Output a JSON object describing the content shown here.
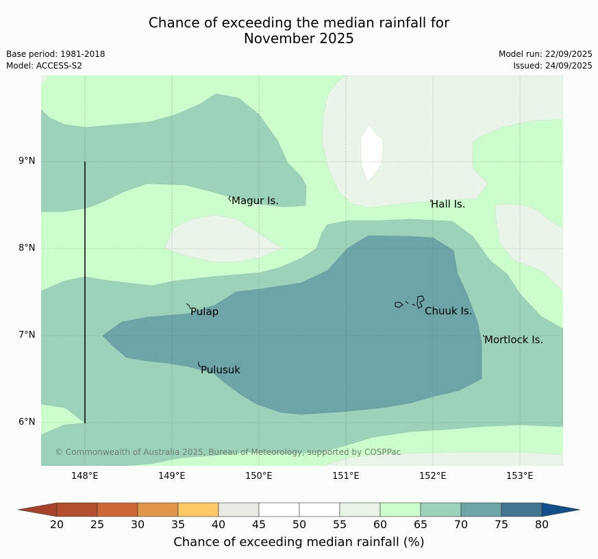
{
  "title_line1": "Chance of exceeding the median rainfall for",
  "title_line2": "November 2025",
  "base_period": "Base period: 1981-2018",
  "model": "Model: ACCESS-S2",
  "model_run": "Model run: 22/09/2025",
  "issued": "Issued: 24/09/2025",
  "places": {
    "magur": "Magur Is.",
    "hall": "Hall Is.",
    "pulap": "Pulap",
    "chuuk": "Chuuk Is.",
    "mortlock": "Mortlock Is.",
    "pulusuk": "Pulusuk"
  },
  "lon_ticks": [
    "148°E",
    "149°E",
    "150°E",
    "151°E",
    "152°E",
    "153°E"
  ],
  "lat_ticks": [
    "9°N",
    "8°N",
    "7°N",
    "6°N"
  ],
  "copyright": "© Commonwealth of Australia 2025, Bureau of Meteorology, supported by COSPPac",
  "colorbar": {
    "ticks": [
      "20",
      "25",
      "30",
      "35",
      "40",
      "45",
      "50",
      "55",
      "60",
      "65",
      "70",
      "75",
      "80"
    ],
    "colors": [
      "#a7422a",
      "#b54e2a",
      "#cd6733",
      "#e09749",
      "#fcc962",
      "#eaeae5",
      "#ffffff",
      "#ffffff",
      "#e8f5e8",
      "#ccfdcc",
      "#9dd2ba",
      "#6ca4a7",
      "#427793",
      "#114e8a"
    ],
    "label": "Chance of exceeding median rainfall (%)"
  },
  "chart_data": {
    "type": "contour-map",
    "variable": "Chance of exceeding median rainfall (%)",
    "period": "November 2025",
    "lon_range": [
      147.5,
      153.5
    ],
    "lat_range": [
      5.5,
      10.0
    ],
    "levels": [
      20,
      25,
      30,
      35,
      40,
      45,
      50,
      55,
      60,
      65,
      70,
      75,
      80
    ],
    "zones": [
      {
        "range": "60-65",
        "description": "background band across north and south"
      },
      {
        "range": "55-60",
        "description": "north-east near Hall Is., far east near 153E 8N, pocket near 149.5E 8.1N"
      },
      {
        "range": "50-55",
        "description": "small pocket near 151.3E 9.2N"
      },
      {
        "range": "65-70",
        "description": "band from west 9N through central region to east"
      },
      {
        "range": "70-75",
        "description": "core centred near Chuuk Is. and Pulap/Pulusuk"
      }
    ]
  }
}
